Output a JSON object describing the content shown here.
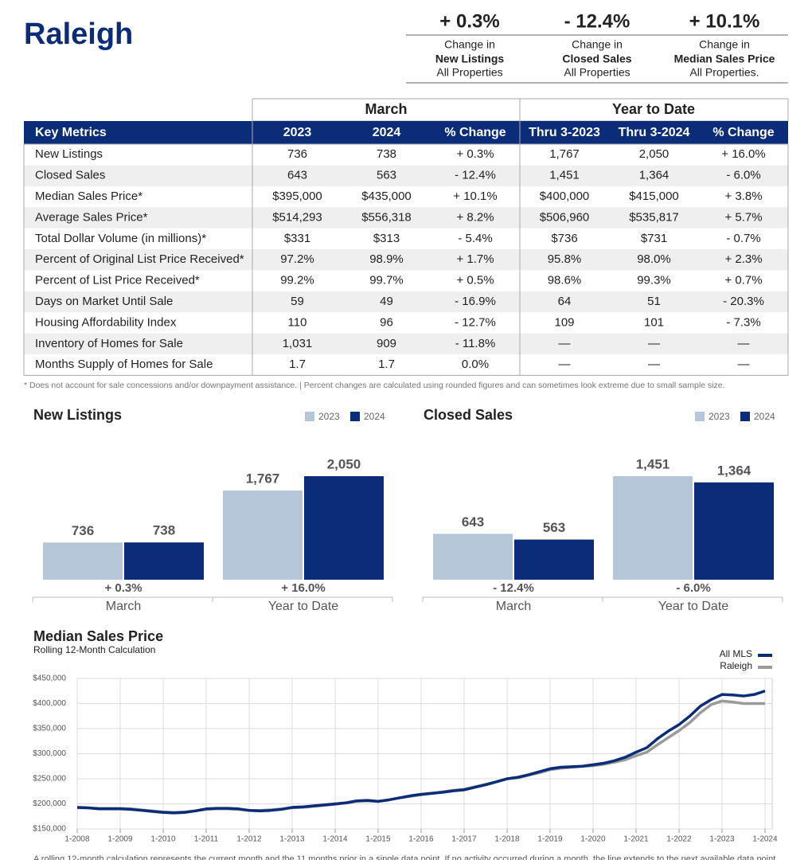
{
  "header": {
    "title": "Raleigh"
  },
  "highlights": [
    {
      "value": "+ 0.3%",
      "lines": [
        "Change in",
        "New Listings",
        "All Properties"
      ]
    },
    {
      "value": "- 12.4%",
      "lines": [
        "Change in",
        "Closed Sales",
        "All Properties"
      ]
    },
    {
      "value": "+ 10.1%",
      "lines": [
        "Change in",
        "Median Sales Price",
        "All Properties."
      ]
    }
  ],
  "table": {
    "groups": [
      "March",
      "Year to Date"
    ],
    "columns": [
      "Key Metrics",
      "2023",
      "2024",
      "% Change",
      "Thru 3-2023",
      "Thru 3-2024",
      "% Change"
    ],
    "rows": [
      [
        "New Listings",
        "736",
        "738",
        "+ 0.3%",
        "1,767",
        "2,050",
        "+ 16.0%"
      ],
      [
        "Closed Sales",
        "643",
        "563",
        "- 12.4%",
        "1,451",
        "1,364",
        "- 6.0%"
      ],
      [
        "Median Sales Price*",
        "$395,000",
        "$435,000",
        "+ 10.1%",
        "$400,000",
        "$415,000",
        "+ 3.8%"
      ],
      [
        "Average Sales Price*",
        "$514,293",
        "$556,318",
        "+ 8.2%",
        "$506,960",
        "$535,817",
        "+ 5.7%"
      ],
      [
        "Total Dollar Volume (in millions)*",
        "$331",
        "$313",
        "- 5.4%",
        "$736",
        "$731",
        "- 0.7%"
      ],
      [
        "Percent of Original List Price Received*",
        "97.2%",
        "98.9%",
        "+ 1.7%",
        "95.8%",
        "98.0%",
        "+ 2.3%"
      ],
      [
        "Percent of List Price Received*",
        "99.2%",
        "99.7%",
        "+ 0.5%",
        "98.6%",
        "99.3%",
        "+ 0.7%"
      ],
      [
        "Days on Market Until Sale",
        "59",
        "49",
        "- 16.9%",
        "64",
        "51",
        "- 20.3%"
      ],
      [
        "Housing Affordability Index",
        "110",
        "96",
        "- 12.7%",
        "109",
        "101",
        "- 7.3%"
      ],
      [
        "Inventory of Homes for Sale",
        "1,031",
        "909",
        "- 11.8%",
        "—",
        "—",
        "—"
      ],
      [
        "Months Supply of Homes for Sale",
        "1.7",
        "1.7",
        "0.0%",
        "—",
        "—",
        "—"
      ]
    ]
  },
  "footnote": "* Does not account for sale concessions and/or downpayment assistance. | Percent changes are calculated using rounded figures and can sometimes look extreme due to small sample size.",
  "chart_data": [
    {
      "type": "bar",
      "title": "New Listings",
      "categories": [
        "March",
        "Year to Date"
      ],
      "series": [
        {
          "name": "2023",
          "color": "#b4c6d8",
          "values": [
            736,
            1767
          ],
          "value_labels": [
            "736",
            "1,767"
          ]
        },
        {
          "name": "2024",
          "color": "#0b2d79",
          "values": [
            738,
            2050
          ],
          "value_labels": [
            "738",
            "2,050"
          ]
        }
      ],
      "annotations": [
        "+ 0.3%",
        "+ 16.0%"
      ]
    },
    {
      "type": "bar",
      "title": "Closed Sales",
      "categories": [
        "March",
        "Year to Date"
      ],
      "series": [
        {
          "name": "2023",
          "color": "#b4c6d8",
          "values": [
            643,
            1451
          ],
          "value_labels": [
            "643",
            "1,451"
          ]
        },
        {
          "name": "2024",
          "color": "#0b2d79",
          "values": [
            563,
            1364
          ],
          "value_labels": [
            "563",
            "1,364"
          ]
        }
      ],
      "annotations": [
        "- 12.4%",
        "- 6.0%"
      ]
    },
    {
      "type": "line",
      "title": "Median Sales Price",
      "subtitle": "Rolling 12-Month Calculation",
      "x": [
        "1-2008",
        "4-2008",
        "7-2008",
        "10-2008",
        "1-2009",
        "4-2009",
        "7-2009",
        "10-2009",
        "1-2010",
        "4-2010",
        "7-2010",
        "10-2010",
        "1-2011",
        "4-2011",
        "7-2011",
        "10-2011",
        "1-2012",
        "4-2012",
        "7-2012",
        "10-2012",
        "1-2013",
        "4-2013",
        "7-2013",
        "10-2013",
        "1-2014",
        "4-2014",
        "7-2014",
        "10-2014",
        "1-2015",
        "4-2015",
        "7-2015",
        "10-2015",
        "1-2016",
        "4-2016",
        "7-2016",
        "10-2016",
        "1-2017",
        "4-2017",
        "7-2017",
        "10-2017",
        "1-2018",
        "4-2018",
        "7-2018",
        "10-2018",
        "1-2019",
        "4-2019",
        "7-2019",
        "10-2019",
        "1-2020",
        "4-2020",
        "7-2020",
        "10-2020",
        "1-2021",
        "4-2021",
        "7-2021",
        "10-2021",
        "1-2022",
        "4-2022",
        "7-2022",
        "10-2022",
        "1-2023",
        "4-2023",
        "7-2023",
        "10-2023",
        "1-2024"
      ],
      "series": [
        {
          "name": "All MLS",
          "color": "#0b2d79",
          "values": [
            193000,
            192000,
            190000,
            190000,
            190000,
            189000,
            187000,
            185000,
            183000,
            182000,
            183000,
            186000,
            190000,
            191000,
            191000,
            190000,
            187000,
            186000,
            187000,
            189000,
            193000,
            194000,
            196000,
            198000,
            200000,
            202000,
            206000,
            207000,
            205000,
            208000,
            212000,
            216000,
            219000,
            221000,
            223000,
            226000,
            228000,
            233000,
            238000,
            244000,
            250000,
            253000,
            258000,
            264000,
            270000,
            273000,
            274000,
            275000,
            278000,
            281000,
            286000,
            293000,
            303000,
            312000,
            330000,
            345000,
            358000,
            375000,
            395000,
            408000,
            418000,
            417000,
            415000,
            418000,
            425000
          ]
        },
        {
          "name": "Raleigh",
          "color": "#9a9a9a",
          "values": [
            192000,
            192000,
            191000,
            191000,
            191000,
            190000,
            188000,
            186000,
            184000,
            183000,
            184000,
            186000,
            189000,
            190000,
            190000,
            189000,
            187000,
            187000,
            188000,
            190000,
            192000,
            193000,
            195000,
            197000,
            199000,
            202000,
            205000,
            206000,
            205000,
            208000,
            212000,
            215000,
            218000,
            221000,
            224000,
            227000,
            229000,
            234000,
            239000,
            244000,
            250000,
            252000,
            257000,
            262000,
            268000,
            271000,
            273000,
            275000,
            276000,
            279000,
            283000,
            288000,
            296000,
            303000,
            318000,
            332000,
            346000,
            362000,
            382000,
            398000,
            405000,
            403000,
            400000,
            400000,
            400000
          ]
        }
      ],
      "xticks": [
        "1-2008",
        "1-2009",
        "1-2010",
        "1-2011",
        "1-2012",
        "1-2013",
        "1-2014",
        "1-2015",
        "1-2016",
        "1-2017",
        "1-2018",
        "1-2019",
        "1-2020",
        "1-2021",
        "1-2022",
        "1-2023",
        "1-2024"
      ],
      "ylim": [
        150000,
        450000
      ],
      "yticks": [
        {
          "value": 150000,
          "label": "$150,000"
        },
        {
          "value": 200000,
          "label": "$200,000"
        },
        {
          "value": 250000,
          "label": "$250,000"
        },
        {
          "value": 300000,
          "label": "$300,000"
        },
        {
          "value": 350000,
          "label": "$350,000"
        },
        {
          "value": 400000,
          "label": "$400,000"
        },
        {
          "value": 450000,
          "label": "$450,000"
        }
      ],
      "grid": true,
      "note": "A rolling 12-month calculation represents the current month and the 11 months prior in a single data point. If no activity occurred during a month, the line extends to the next available data point."
    }
  ]
}
